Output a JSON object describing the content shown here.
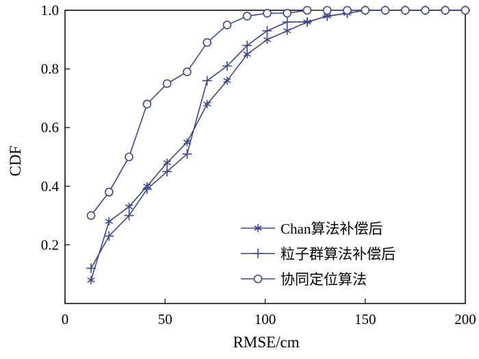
{
  "chart_data": {
    "type": "line",
    "xlabel": "RMSE/cm",
    "ylabel": "CDF",
    "xlim": [
      0,
      200
    ],
    "ylim": [
      0.0,
      1.0
    ],
    "xticks": [
      0,
      50,
      100,
      150,
      200
    ],
    "yticks": [
      0.2,
      0.4,
      0.6,
      0.8,
      1.0
    ],
    "ytick_labels": [
      "0.2",
      "0.4",
      "0.6",
      "0.8",
      "1.0"
    ],
    "grid": false,
    "legend_position": "bottom-right",
    "line_color": "#3b4590",
    "series": [
      {
        "name": "Chan算法补偿后",
        "marker": "asterisk",
        "x": [
          13,
          22,
          32,
          41,
          51,
          61,
          71,
          81,
          91,
          101,
          111,
          121,
          131,
          141,
          150,
          160,
          170,
          180,
          190,
          200
        ],
        "y": [
          0.08,
          0.28,
          0.33,
          0.4,
          0.48,
          0.55,
          0.68,
          0.76,
          0.85,
          0.9,
          0.93,
          0.96,
          0.98,
          0.99,
          1.0,
          1.0,
          1.0,
          1.0,
          1.0,
          1.0
        ]
      },
      {
        "name": "粒子群算法补偿后",
        "marker": "plus",
        "x": [
          13,
          22,
          32,
          41,
          51,
          61,
          71,
          81,
          91,
          101,
          111,
          121,
          131,
          141,
          150,
          160,
          170,
          180,
          190,
          200
        ],
        "y": [
          0.12,
          0.23,
          0.3,
          0.39,
          0.45,
          0.51,
          0.76,
          0.81,
          0.88,
          0.93,
          0.96,
          0.96,
          0.98,
          0.99,
          1.0,
          1.0,
          1.0,
          1.0,
          1.0,
          1.0
        ]
      },
      {
        "name": "协同定位算法",
        "marker": "circle",
        "x": [
          13,
          22,
          32,
          41,
          51,
          61,
          71,
          81,
          91,
          101,
          111,
          121,
          131,
          141,
          150,
          160,
          170,
          180,
          190,
          200
        ],
        "y": [
          0.3,
          0.38,
          0.5,
          0.68,
          0.75,
          0.79,
          0.89,
          0.95,
          0.98,
          0.99,
          0.99,
          1.0,
          1.0,
          1.0,
          1.0,
          1.0,
          1.0,
          1.0,
          1.0,
          1.0
        ]
      }
    ]
  }
}
